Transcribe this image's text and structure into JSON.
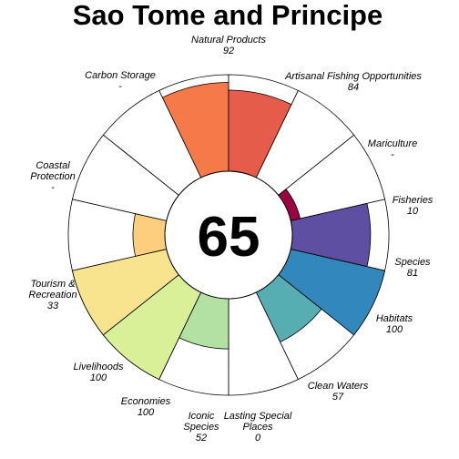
{
  "chart_data": {
    "type": "flower",
    "title": "Sao Tome and Principe",
    "center_score": "65",
    "max_value": 100,
    "petals": [
      {
        "label": "Natural Products",
        "value_text": "92",
        "value": 92,
        "color": "#f67a49"
      },
      {
        "label": "Artisanal Fishing Opportunities",
        "value_text": "84",
        "value": 84,
        "color": "#e65c4b"
      },
      {
        "label": "Mariculture",
        "value_text": "-",
        "value": null,
        "color": "#ffffff"
      },
      {
        "label": "Fisheries",
        "value_text": "10",
        "value": 10,
        "color": "#9e0142"
      },
      {
        "label": "Species",
        "value_text": "81",
        "value": 81,
        "color": "#5e4fa2"
      },
      {
        "label": "Habitats",
        "value_text": "100",
        "value": 100,
        "color": "#3288bd"
      },
      {
        "label": "Clean Waters",
        "value_text": "57",
        "value": 57,
        "color": "#56aeb2"
      },
      {
        "label": "Lasting Special Places",
        "value_text": "0",
        "value": 0,
        "color": "#9fd8a4"
      },
      {
        "label": "Iconic Species",
        "value_text": "52",
        "value": 52,
        "color": "#b3e0a3"
      },
      {
        "label": "Economies",
        "value_text": "100",
        "value": 100,
        "color": "#d9ef98"
      },
      {
        "label": "Livelihoods",
        "value_text": "100",
        "value": 100,
        "color": "#f8e48f"
      },
      {
        "label": "Tourism & Recreation",
        "value_text": "33",
        "value": 33,
        "color": "#fdce7e"
      },
      {
        "label": "Coastal Protection",
        "value_text": "-",
        "value": null,
        "color": "#fdae61"
      },
      {
        "label": "Carbon Storage",
        "value_text": "-",
        "value": null,
        "color": "#f99554"
      }
    ]
  }
}
